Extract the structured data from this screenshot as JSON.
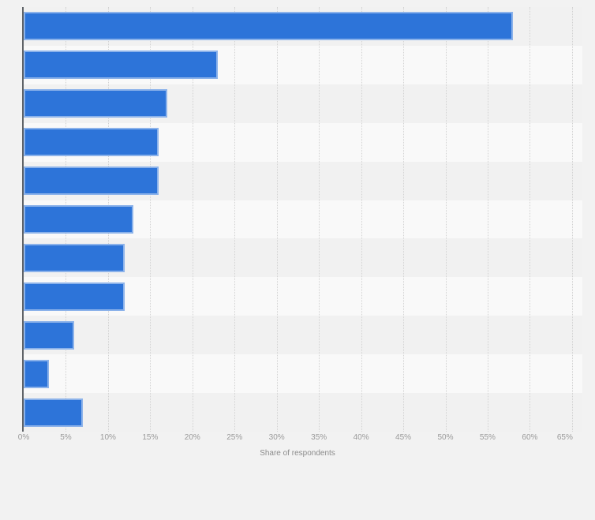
{
  "chart_data": {
    "type": "bar",
    "orientation": "horizontal",
    "title": "",
    "xlabel": "Share of respondents",
    "ylabel": "",
    "unit": "%",
    "xlim": [
      0,
      65
    ],
    "grid": "vertical-dotted",
    "legend": "none",
    "categories": [
      "",
      "",
      "",
      "",
      "",
      "",
      "",
      "",
      "",
      "",
      ""
    ],
    "values": [
      58,
      23,
      17,
      16,
      16,
      13,
      12,
      12,
      6,
      3,
      7
    ],
    "x_ticks": [
      {
        "value": 0,
        "label": "0%"
      },
      {
        "value": 5,
        "label": "5%"
      },
      {
        "value": 10,
        "label": "10%"
      },
      {
        "value": 15,
        "label": "15%"
      },
      {
        "value": 20,
        "label": "20%"
      },
      {
        "value": 25,
        "label": "25%"
      },
      {
        "value": 30,
        "label": "30%"
      },
      {
        "value": 35,
        "label": "35%"
      },
      {
        "value": 40,
        "label": "40%"
      },
      {
        "value": 45,
        "label": "45%"
      },
      {
        "value": 50,
        "label": "50%"
      },
      {
        "value": 55,
        "label": "55%"
      },
      {
        "value": 60,
        "label": "60%"
      },
      {
        "value": 65,
        "label": "65%"
      }
    ],
    "colors": {
      "bar": "#2d74d9",
      "band_dark": "#f1f1f1",
      "band_light": "#f9f9f9",
      "background": "#f2f2f2",
      "axis_line": "#5f6368",
      "gridline": "#d2d2d2",
      "tick_label": "#9a9a9a",
      "axis_title": "#8c8c8c"
    }
  }
}
